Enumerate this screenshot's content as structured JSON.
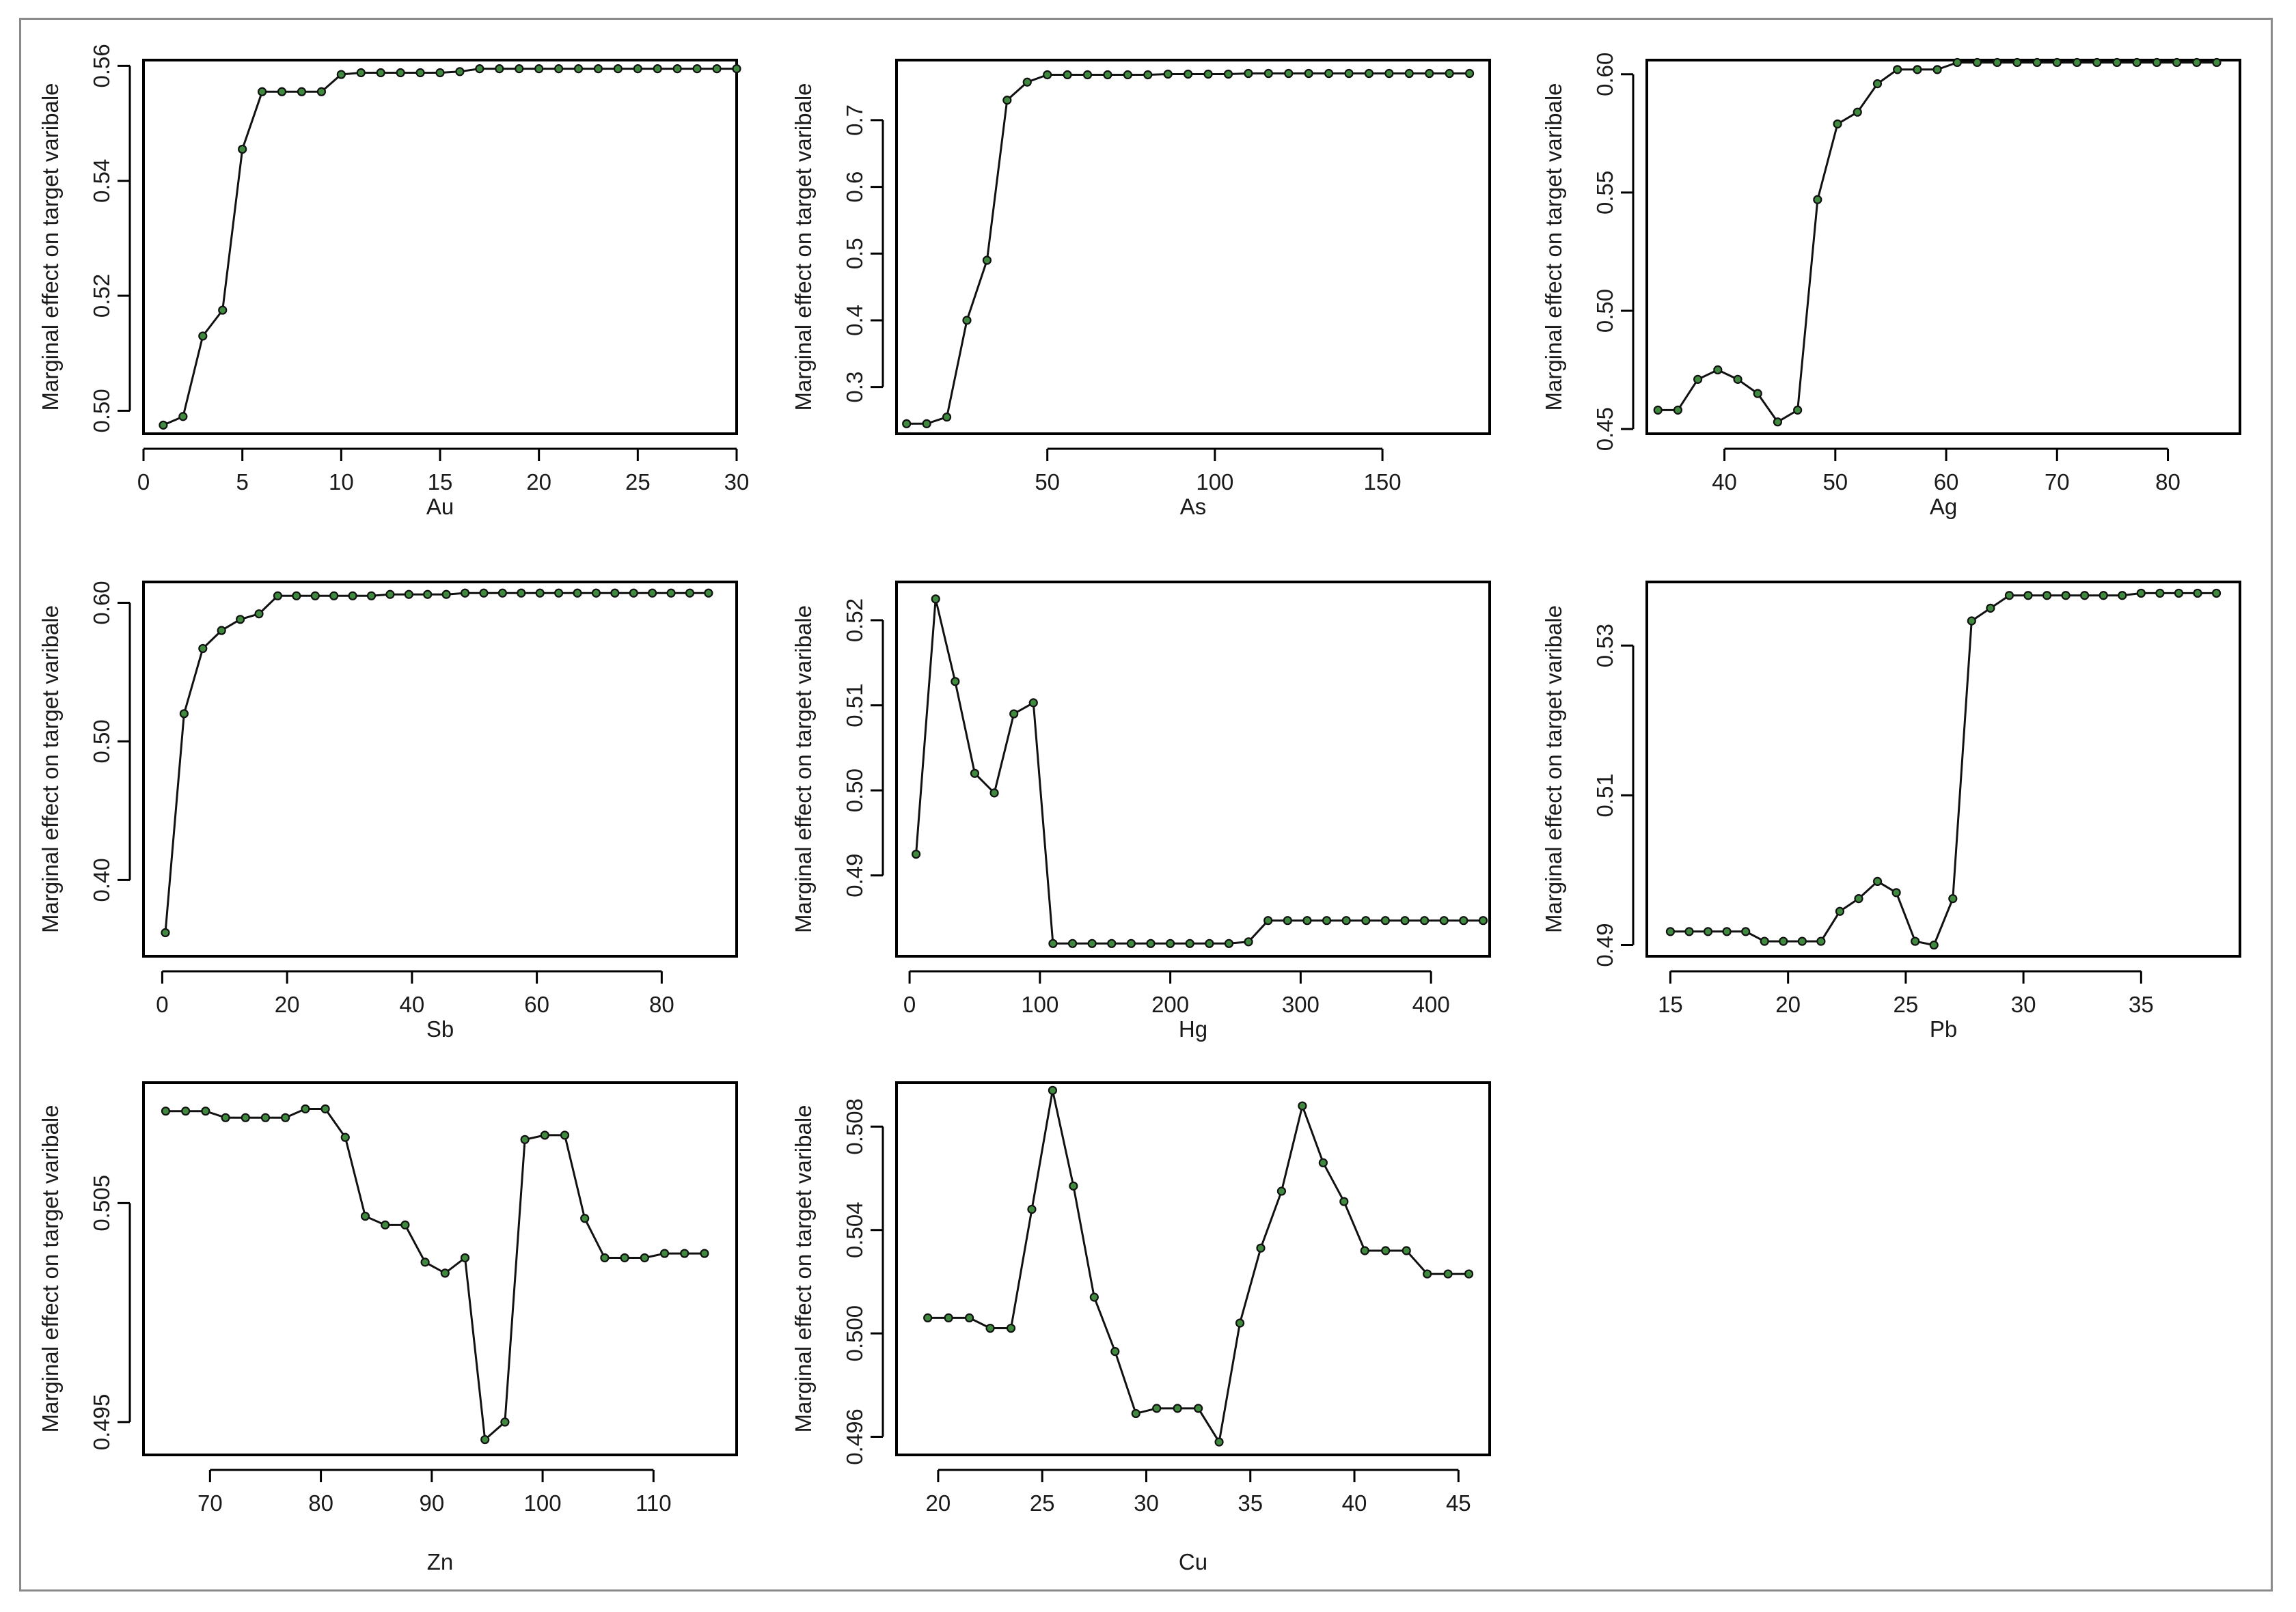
{
  "ylabel": "Marginal effect on target varibale",
  "colors": {
    "line": "#111111",
    "point_fill": "#3f8a3f",
    "frame": "#8a8a8a"
  },
  "chart_data": [
    {
      "type": "line",
      "xlabel": "Au",
      "ylabel": "Marginal effect on target varibale",
      "xlim": [
        0,
        30
      ],
      "ylim": [
        0.496,
        0.561
      ],
      "xticks": [
        0,
        5,
        10,
        15,
        20,
        25,
        30
      ],
      "yticks": [
        0.5,
        0.52,
        0.54,
        0.56
      ],
      "ytick_labels": [
        "0.50",
        "0.52",
        "0.54",
        "0.56"
      ],
      "x": [
        1,
        2,
        3,
        4,
        5,
        6,
        7,
        8,
        9,
        10,
        11,
        12,
        13,
        14,
        15,
        16,
        17,
        18,
        19,
        20,
        21,
        22,
        23,
        24,
        25,
        26,
        27,
        28,
        29,
        30
      ],
      "y": [
        0.4975,
        0.499,
        0.513,
        0.5175,
        0.5455,
        0.5555,
        0.5555,
        0.5555,
        0.5555,
        0.5585,
        0.5588,
        0.5588,
        0.5588,
        0.5588,
        0.5588,
        0.559,
        0.5595,
        0.5595,
        0.5595,
        0.5595,
        0.5595,
        0.5595,
        0.5595,
        0.5595,
        0.5595,
        0.5595,
        0.5595,
        0.5595,
        0.5595,
        0.5595
      ]
    },
    {
      "type": "line",
      "xlabel": "As",
      "ylabel": "Marginal effect on target varibale",
      "xlim": [
        5,
        182
      ],
      "ylim": [
        0.23,
        0.79
      ],
      "xticks": [
        50,
        100,
        150
      ],
      "yticks": [
        0.3,
        0.4,
        0.5,
        0.6,
        0.7
      ],
      "ytick_labels": [
        "0.3",
        "0.4",
        "0.5",
        "0.6",
        "0.7"
      ],
      "x": [
        8,
        14,
        20,
        26,
        32,
        38,
        44,
        50,
        56,
        62,
        68,
        74,
        80,
        86,
        92,
        98,
        104,
        110,
        116,
        122,
        128,
        134,
        140,
        146,
        152,
        158,
        164,
        170,
        176
      ],
      "y": [
        0.245,
        0.245,
        0.255,
        0.4,
        0.49,
        0.73,
        0.757,
        0.768,
        0.768,
        0.768,
        0.768,
        0.768,
        0.768,
        0.769,
        0.769,
        0.769,
        0.769,
        0.77,
        0.77,
        0.77,
        0.77,
        0.77,
        0.77,
        0.77,
        0.77,
        0.77,
        0.77,
        0.77,
        0.77
      ]
    },
    {
      "type": "line",
      "xlabel": "Ag",
      "ylabel": "Marginal effect on target varibale",
      "xlim": [
        33,
        86.5
      ],
      "ylim": [
        0.448,
        0.606
      ],
      "xticks": [
        40,
        50,
        60,
        70,
        80
      ],
      "yticks": [
        0.45,
        0.5,
        0.55,
        0.6
      ],
      "ytick_labels": [
        "0.45",
        "0.50",
        "0.55",
        "0.60"
      ],
      "x": [
        34,
        35.8,
        37.6,
        39.4,
        41.2,
        43,
        44.8,
        46.6,
        48.4,
        50.2,
        52,
        53.8,
        55.6,
        57.4,
        59.2,
        61,
        62.8,
        64.6,
        66.4,
        68.2,
        70,
        71.8,
        73.6,
        75.4,
        77.2,
        79,
        80.8,
        82.6,
        84.4
      ],
      "y": [
        0.458,
        0.458,
        0.471,
        0.475,
        0.471,
        0.465,
        0.453,
        0.458,
        0.547,
        0.579,
        0.584,
        0.596,
        0.602,
        0.602,
        0.602,
        0.605,
        0.605,
        0.605,
        0.605,
        0.605,
        0.605,
        0.605,
        0.605,
        0.605,
        0.605,
        0.605,
        0.605,
        0.605,
        0.605
      ]
    },
    {
      "type": "line",
      "xlabel": "Sb",
      "ylabel": "Marginal effect on target varibale",
      "xlim": [
        -3,
        92
      ],
      "ylim": [
        0.345,
        0.615
      ],
      "xticks": [
        0,
        20,
        40,
        60,
        80
      ],
      "yticks": [
        0.4,
        0.5,
        0.6
      ],
      "ytick_labels": [
        "0.40",
        "0.50",
        "0.60"
      ],
      "x": [
        0.5,
        3.5,
        6.5,
        9.5,
        12.5,
        15.5,
        18.5,
        21.5,
        24.5,
        27.5,
        30.5,
        33.5,
        36.5,
        39.5,
        42.5,
        45.5,
        48.5,
        51.5,
        54.5,
        57.5,
        60.5,
        63.5,
        66.5,
        69.5,
        72.5,
        75.5,
        78.5,
        81.5,
        84.5,
        87.5
      ],
      "y": [
        0.362,
        0.52,
        0.567,
        0.58,
        0.588,
        0.592,
        0.605,
        0.605,
        0.605,
        0.605,
        0.605,
        0.605,
        0.606,
        0.606,
        0.606,
        0.606,
        0.607,
        0.607,
        0.607,
        0.607,
        0.607,
        0.607,
        0.607,
        0.607,
        0.607,
        0.607,
        0.607,
        0.607,
        0.607,
        0.607
      ]
    },
    {
      "type": "line",
      "xlabel": "Hg",
      "ylabel": "Marginal effect on target varibale",
      "xlim": [
        -10,
        445
      ],
      "ylim": [
        0.4805,
        0.5245
      ],
      "xticks": [
        0,
        100,
        200,
        300,
        400
      ],
      "yticks": [
        0.49,
        0.5,
        0.51,
        0.52
      ],
      "ytick_labels": [
        "0.49",
        "0.50",
        "0.51",
        "0.52"
      ],
      "x": [
        5,
        20,
        35,
        50,
        65,
        80,
        95,
        110,
        125,
        140,
        155,
        170,
        185,
        200,
        215,
        230,
        245,
        260,
        275,
        290,
        305,
        320,
        335,
        350,
        365,
        380,
        395,
        410,
        425,
        440
      ],
      "y": [
        0.4925,
        0.5225,
        0.5128,
        0.502,
        0.4997,
        0.509,
        0.5103,
        0.482,
        0.482,
        0.482,
        0.482,
        0.482,
        0.482,
        0.482,
        0.482,
        0.482,
        0.482,
        0.4822,
        0.4847,
        0.4847,
        0.4847,
        0.4847,
        0.4847,
        0.4847,
        0.4847,
        0.4847,
        0.4847,
        0.4847,
        0.4847,
        0.4847
      ]
    },
    {
      "type": "line",
      "xlabel": "Pb",
      "ylabel": "Marginal effect on target varibale",
      "xlim": [
        14,
        39.2
      ],
      "ylim": [
        0.4885,
        0.5385
      ],
      "xticks": [
        15,
        20,
        25,
        30,
        35
      ],
      "yticks": [
        0.49,
        0.51,
        0.53
      ],
      "ytick_labels": [
        "0.49",
        "0.51",
        "0.53"
      ],
      "x": [
        15,
        15.8,
        16.6,
        17.4,
        18.2,
        19,
        19.8,
        20.6,
        21.4,
        22.2,
        23,
        23.8,
        24.6,
        25.4,
        26.2,
        27,
        27.8,
        28.6,
        29.4,
        30.2,
        31,
        31.8,
        32.6,
        33.4,
        34.2,
        35,
        35.8,
        36.6,
        37.4,
        38.2
      ],
      "y": [
        0.4918,
        0.4918,
        0.4918,
        0.4918,
        0.4918,
        0.4905,
        0.4905,
        0.4905,
        0.4905,
        0.4945,
        0.4962,
        0.4985,
        0.497,
        0.4905,
        0.49,
        0.4962,
        0.5333,
        0.535,
        0.5367,
        0.5367,
        0.5367,
        0.5367,
        0.5367,
        0.5367,
        0.5367,
        0.537,
        0.537,
        0.537,
        0.537,
        0.537
      ]
    },
    {
      "type": "line",
      "xlabel": "Zn",
      "ylabel": "Marginal effect on target varibale",
      "xlim": [
        64,
        117.5
      ],
      "ylim": [
        0.4935,
        0.5105
      ],
      "xticks": [
        70,
        80,
        90,
        100,
        110
      ],
      "yticks": [
        0.495,
        0.505
      ],
      "ytick_labels": [
        "0.495",
        "0.505"
      ],
      "x": [
        66,
        67.8,
        69.6,
        71.4,
        73.2,
        75,
        76.8,
        78.6,
        80.4,
        82.2,
        84,
        85.8,
        87.6,
        89.4,
        91.2,
        93,
        94.8,
        96.6,
        98.4,
        100.2,
        102,
        103.8,
        105.6,
        107.4,
        109.2,
        111,
        112.8,
        114.6
      ],
      "y": [
        0.5092,
        0.5092,
        0.5092,
        0.5089,
        0.5089,
        0.5089,
        0.5089,
        0.5093,
        0.5093,
        0.508,
        0.5044,
        0.504,
        0.504,
        0.5023,
        0.5018,
        0.5025,
        0.4942,
        0.495,
        0.5079,
        0.5081,
        0.5081,
        0.5043,
        0.5025,
        0.5025,
        0.5025,
        0.5027,
        0.5027,
        0.5027
      ]
    },
    {
      "type": "line",
      "xlabel": "Cu",
      "ylabel": "Marginal effect on target varibale",
      "xlim": [
        18,
        46.5
      ],
      "ylim": [
        0.4953,
        0.5097
      ],
      "xticks": [
        20,
        25,
        30,
        35,
        40,
        45
      ],
      "yticks": [
        0.496,
        0.5,
        0.504,
        0.508
      ],
      "ytick_labels": [
        "0.496",
        "0.500",
        "0.504",
        "0.508"
      ],
      "x": [
        19.5,
        20.5,
        21.5,
        22.5,
        23.5,
        24.5,
        25.5,
        26.5,
        27.5,
        28.5,
        29.5,
        30.5,
        31.5,
        32.5,
        33.5,
        34.5,
        35.5,
        36.5,
        37.5,
        38.5,
        39.5,
        40.5,
        41.5,
        42.5,
        43.5,
        44.5,
        45.5
      ],
      "y": [
        0.5006,
        0.5006,
        0.5006,
        0.5002,
        0.5002,
        0.5048,
        0.5094,
        0.5057,
        0.5014,
        0.4993,
        0.4969,
        0.4971,
        0.4971,
        0.4971,
        0.4958,
        0.5004,
        0.5033,
        0.5055,
        0.5088,
        0.5066,
        0.5051,
        0.5032,
        0.5032,
        0.5032,
        0.5023,
        0.5023,
        0.5023
      ]
    }
  ]
}
